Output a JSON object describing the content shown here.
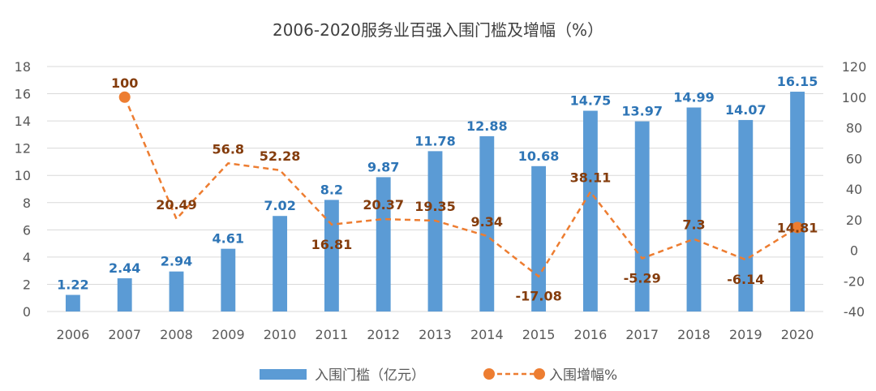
{
  "chart_data": {
    "type": "bar",
    "title": "2006-2020服务业百强入围门槛及增幅（%）",
    "categories": [
      "2006",
      "2007",
      "2008",
      "2009",
      "2010",
      "2011",
      "2012",
      "2013",
      "2014",
      "2015",
      "2016",
      "2017",
      "2018",
      "2019",
      "2020"
    ],
    "series": [
      {
        "name": "入围门槛（亿元）",
        "type": "bar",
        "axis": "left",
        "values": [
          1.22,
          2.44,
          2.94,
          4.61,
          7.02,
          8.2,
          9.87,
          11.78,
          12.88,
          10.68,
          14.75,
          13.97,
          14.99,
          14.07,
          16.15
        ],
        "labels": [
          "1.22",
          "2.44",
          "2.94",
          "4.61",
          "7.02",
          "8.2",
          "9.87",
          "11.78",
          "12.88",
          "10.68",
          "14.75",
          "13.97",
          "14.99",
          "14.07",
          "16.15"
        ]
      },
      {
        "name": "入围增幅%",
        "type": "line",
        "axis": "right",
        "values": [
          null,
          100,
          20.49,
          56.8,
          52.28,
          16.81,
          20.37,
          19.35,
          9.34,
          -17.08,
          38.11,
          -5.29,
          7.3,
          -6.14,
          14.81
        ],
        "labels": [
          "",
          "100",
          "20.49",
          "56.8",
          "52.28",
          "16.81",
          "20.37",
          "19.35",
          "9.34",
          "-17.08",
          "38.11",
          "-5.29",
          "7.3",
          "-6.14",
          "14.81"
        ]
      }
    ],
    "y_left": {
      "ylim": [
        0,
        18
      ],
      "ticks": [
        "0",
        "2",
        "4",
        "6",
        "8",
        "10",
        "12",
        "14",
        "16",
        "18"
      ]
    },
    "y_right": {
      "ylim": [
        -40,
        120
      ],
      "ticks": [
        "-40",
        "-20",
        "0",
        "20",
        "40",
        "60",
        "80",
        "100",
        "120"
      ]
    },
    "grid": true,
    "legend_position": "bottom",
    "colors": {
      "bar": "#5B9BD5",
      "bar_label": "#2E75B6",
      "line": "#ED7D31",
      "line_label": "#843C0C",
      "grid": "#D9D9D9",
      "text": "#595959"
    }
  }
}
